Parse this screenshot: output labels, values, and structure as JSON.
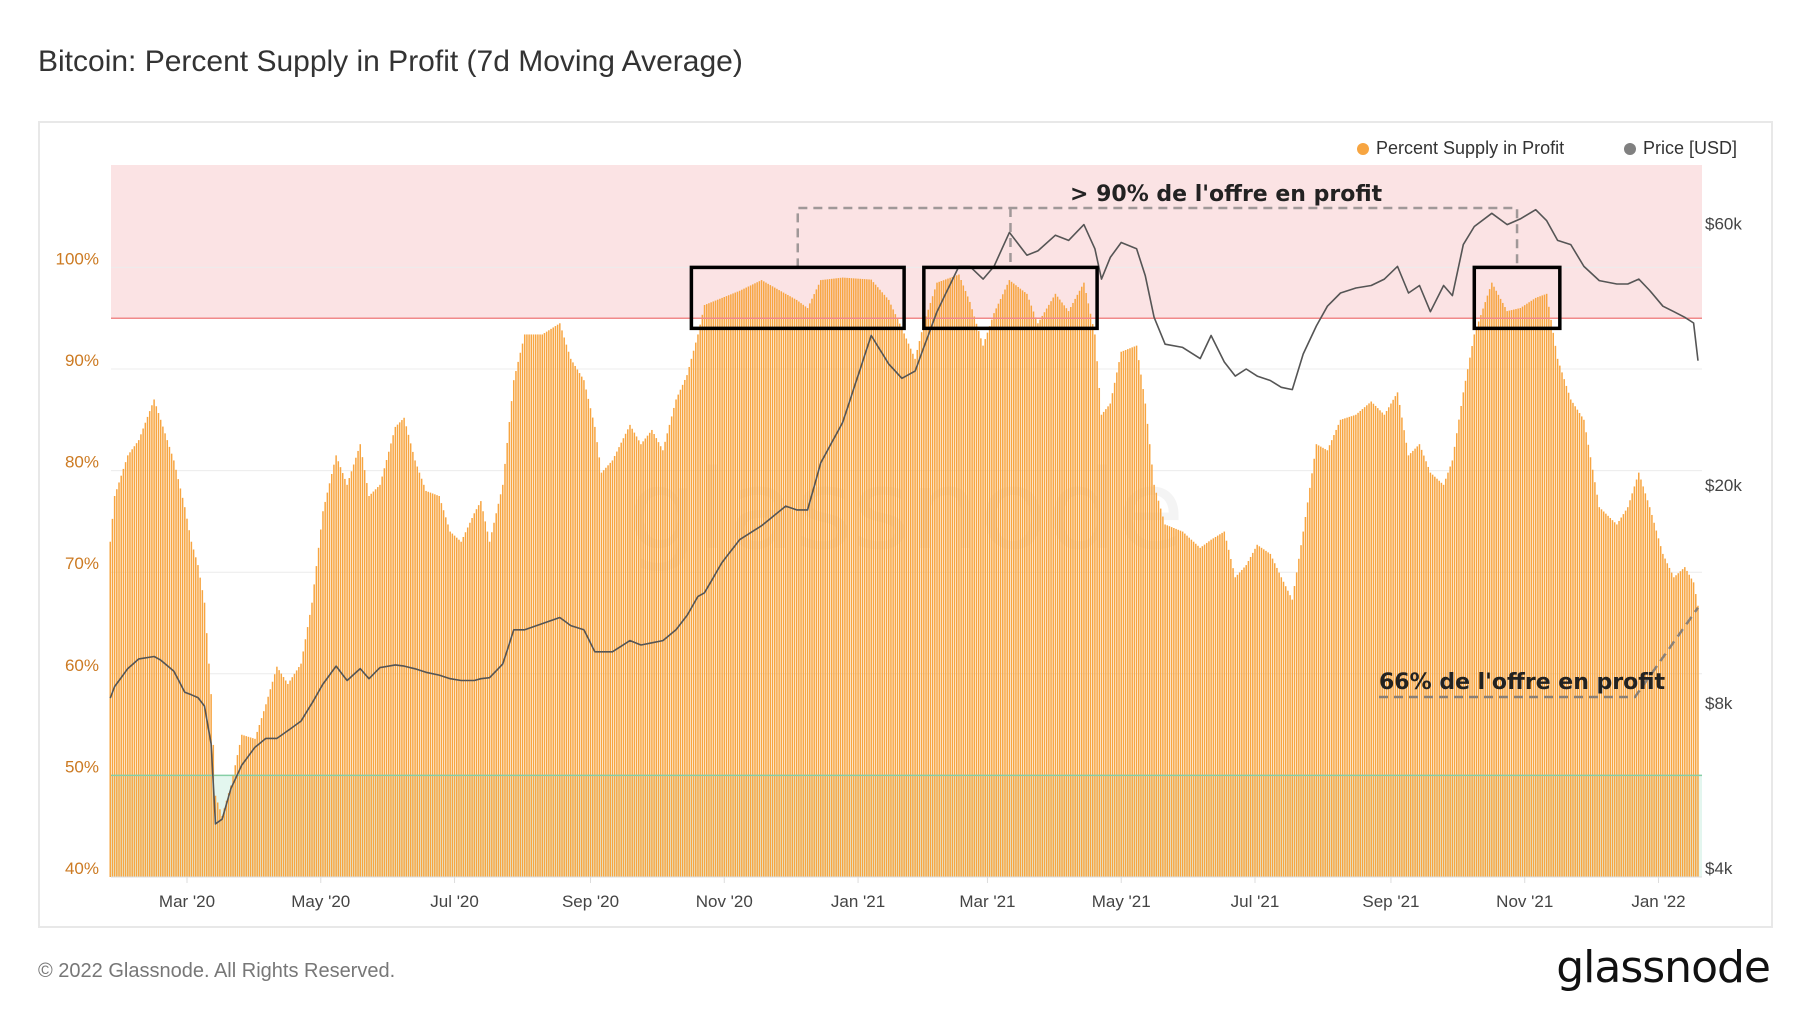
{
  "title": "Bitcoin: Percent Supply in Profit (7d Moving Average)",
  "footer": {
    "copyright": "© 2022 Glassnode. All Rights Reserved.",
    "logo": "glassnode"
  },
  "watermark": "glassnode",
  "legend": [
    {
      "label": "Percent Supply in Profit",
      "color": "#f7a541"
    },
    {
      "label": "Price [USD]",
      "color": "#808080"
    }
  ],
  "annotations": {
    "top_label": "> 90% de l'offre en profit",
    "bottom_label": "66% de l'offre en profit",
    "boxes": [
      {
        "from": "2020-10-17",
        "to": "2021-01-22",
        "low": 94,
        "high": 100
      },
      {
        "from": "2021-01-31",
        "to": "2021-04-20",
        "low": 94,
        "high": 100
      },
      {
        "from": "2021-10-09",
        "to": "2021-11-17",
        "low": 94,
        "high": 100
      }
    ],
    "red_threshold": 95,
    "green_threshold": 50
  },
  "chart_data": {
    "type": "bar",
    "left_axis": {
      "ticks": [
        "40%",
        "50%",
        "60%",
        "70%",
        "80%",
        "90%",
        "100%"
      ],
      "tick_values": [
        40,
        50,
        60,
        70,
        80,
        90,
        100
      ],
      "range": [
        40,
        110
      ],
      "color": "#cc7a22"
    },
    "right_axis": {
      "scale": "log",
      "ticks": [
        "$4k",
        "$8k",
        "$20k",
        "$60k"
      ],
      "tick_values": [
        4000,
        8000,
        20000,
        60000
      ]
    },
    "x_axis": {
      "ticks": [
        "Mar '20",
        "May '20",
        "Jul '20",
        "Sep '20",
        "Nov '20",
        "Jan '21",
        "Mar '21",
        "May '21",
        "Jul '21",
        "Sep '21",
        "Nov '21",
        "Jan '22"
      ],
      "tick_dates": [
        "2020-03-01",
        "2020-05-01",
        "2020-07-01",
        "2020-09-01",
        "2020-11-01",
        "2021-01-01",
        "2021-03-01",
        "2021-05-01",
        "2021-07-01",
        "2021-09-01",
        "2021-11-01",
        "2022-01-01"
      ],
      "range": [
        "2020-01-26",
        "2022-01-21"
      ]
    },
    "grid": true,
    "legend_position": "top-right",
    "x": [
      "2020-01-26",
      "2020-01-28",
      "2020-02-03",
      "2020-02-08",
      "2020-02-15",
      "2020-02-18",
      "2020-02-24",
      "2020-02-29",
      "2020-03-03",
      "2020-03-06",
      "2020-03-09",
      "2020-03-12",
      "2020-03-14",
      "2020-03-17",
      "2020-03-21",
      "2020-03-26",
      "2020-04-01",
      "2020-04-06",
      "2020-04-11",
      "2020-04-16",
      "2020-04-22",
      "2020-04-27",
      "2020-05-02",
      "2020-05-08",
      "2020-05-13",
      "2020-05-19",
      "2020-05-23",
      "2020-05-28",
      "2020-06-04",
      "2020-06-08",
      "2020-06-13",
      "2020-06-18",
      "2020-06-24",
      "2020-06-29",
      "2020-07-04",
      "2020-07-10",
      "2020-07-13",
      "2020-07-17",
      "2020-07-23",
      "2020-07-28",
      "2020-08-02",
      "2020-08-10",
      "2020-08-18",
      "2020-08-23",
      "2020-08-29",
      "2020-09-03",
      "2020-09-06",
      "2020-09-11",
      "2020-09-19",
      "2020-09-24",
      "2020-09-29",
      "2020-10-04",
      "2020-10-10",
      "2020-10-15",
      "2020-10-20",
      "2020-10-23",
      "2020-10-31",
      "2020-11-08",
      "2020-11-18",
      "2020-11-29",
      "2020-12-04",
      "2020-12-09",
      "2020-12-15",
      "2020-12-25",
      "2021-01-07",
      "2021-01-15",
      "2021-01-21",
      "2021-01-27",
      "2021-01-31",
      "2021-02-06",
      "2021-02-16",
      "2021-02-21",
      "2021-02-27",
      "2021-03-04",
      "2021-03-11",
      "2021-03-19",
      "2021-03-24",
      "2021-04-01",
      "2021-04-07",
      "2021-04-14",
      "2021-04-19",
      "2021-04-22",
      "2021-04-26",
      "2021-05-01",
      "2021-05-08",
      "2021-05-12",
      "2021-05-16",
      "2021-05-21",
      "2021-05-29",
      "2021-06-06",
      "2021-06-11",
      "2021-06-17",
      "2021-06-22",
      "2021-06-27",
      "2021-07-02",
      "2021-07-08",
      "2021-07-13",
      "2021-07-18",
      "2021-07-23",
      "2021-07-29",
      "2021-08-03",
      "2021-08-09",
      "2021-08-16",
      "2021-08-23",
      "2021-08-29",
      "2021-09-04",
      "2021-09-09",
      "2021-09-14",
      "2021-09-19",
      "2021-09-25",
      "2021-09-29",
      "2021-10-04",
      "2021-10-09",
      "2021-10-17",
      "2021-10-24",
      "2021-10-30",
      "2021-11-06",
      "2021-11-11",
      "2021-11-16",
      "2021-11-22",
      "2021-11-28",
      "2021-12-05",
      "2021-12-13",
      "2021-12-18",
      "2021-12-23",
      "2021-12-28",
      "2022-01-03",
      "2022-01-08",
      "2022-01-13",
      "2022-01-17",
      "2022-01-19"
    ],
    "series": [
      {
        "name": "Percent Supply in Profit",
        "axis": "left",
        "type": "bar",
        "values": [
          73,
          77.5,
          81.5,
          83,
          87,
          85,
          81,
          76.4,
          73,
          70.7,
          67,
          58,
          48,
          46,
          49,
          54,
          53.6,
          57,
          60.7,
          59,
          61,
          67,
          76,
          81.5,
          78.6,
          82.6,
          77.5,
          78.6,
          84.3,
          85.2,
          81,
          78,
          77.5,
          74,
          73,
          75.8,
          77,
          73,
          78.6,
          88.9,
          93.4,
          93.4,
          94.5,
          91,
          88.9,
          84.3,
          79.8,
          81,
          84.5,
          82.6,
          84,
          82,
          87,
          89.4,
          93.4,
          96.3,
          97,
          97.7,
          98.75,
          97.4,
          96.8,
          96,
          98.75,
          99,
          98.8,
          96.8,
          94,
          91,
          94.5,
          98.5,
          99.3,
          96.6,
          92.3,
          95.5,
          98.75,
          97.4,
          94.5,
          97.4,
          95.7,
          98.5,
          93.4,
          85.5,
          86.6,
          91.7,
          92.3,
          86.6,
          78.6,
          74.7,
          74,
          72.4,
          73.2,
          74,
          69.5,
          70.7,
          72.7,
          71.8,
          69.5,
          67.3,
          74,
          82.6,
          82,
          85,
          85.5,
          86.8,
          85.5,
          87.7,
          81.5,
          82.6,
          79.8,
          78.6,
          81,
          87.7,
          93.4,
          98.5,
          95.7,
          96,
          97,
          97.4,
          91,
          87,
          85,
          76.4,
          74.7,
          76.4,
          79.8,
          76.4,
          71.8,
          69.5,
          70.5,
          69,
          66.7
        ]
      },
      {
        "name": "Price [USD]",
        "axis": "right",
        "type": "line",
        "values": [
          8480,
          8900,
          9600,
          10000,
          10100,
          9950,
          9500,
          8690,
          8600,
          8500,
          8200,
          7000,
          5000,
          5100,
          5800,
          6400,
          6900,
          7160,
          7160,
          7400,
          7700,
          8300,
          9000,
          9700,
          9130,
          9600,
          9200,
          9640,
          9750,
          9700,
          9590,
          9450,
          9340,
          9200,
          9130,
          9130,
          9200,
          9240,
          9790,
          11300,
          11300,
          11600,
          11900,
          11500,
          11300,
          10300,
          10300,
          10300,
          10800,
          10600,
          10700,
          10800,
          11300,
          12000,
          13000,
          13200,
          15000,
          16500,
          17500,
          19000,
          18700,
          18700,
          22800,
          27000,
          38900,
          34500,
          32500,
          33500,
          37000,
          43000,
          52000,
          52000,
          49300,
          52000,
          60000,
          54500,
          55500,
          59300,
          58000,
          62000,
          56000,
          49300,
          54000,
          57500,
          56000,
          50000,
          42000,
          37500,
          37000,
          35300,
          38900,
          34800,
          32800,
          33800,
          32800,
          32200,
          31300,
          31000,
          36000,
          40500,
          44000,
          46500,
          47500,
          48000,
          49300,
          52000,
          46500,
          48000,
          43000,
          48000,
          46000,
          57000,
          61500,
          65000,
          62000,
          63500,
          66000,
          63000,
          58000,
          57000,
          52000,
          49000,
          48300,
          48300,
          49300,
          47000,
          44000,
          43000,
          42000,
          41000,
          35000
        ]
      }
    ]
  }
}
